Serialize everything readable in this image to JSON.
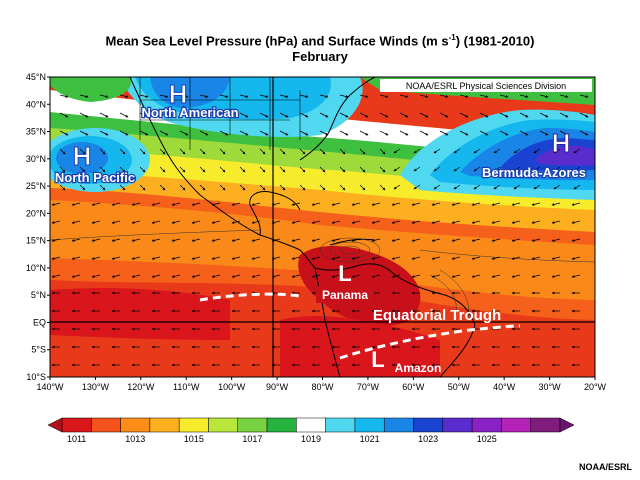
{
  "title": {
    "line1_prefix": "Mean Sea Level Pressure (hPa) and Surface Winds (m s",
    "line1_sup": "-1",
    "line1_suffix": ") (1981-2010)",
    "line2": "February"
  },
  "source_tag": "NOAA/ESRL Physical Sciences Division",
  "credit": "NOAA/ESRL",
  "axes": {
    "lat_labels": [
      "45°N",
      "40°N",
      "35°N",
      "30°N",
      "25°N",
      "20°N",
      "15°N",
      "10°N",
      "5°N",
      "EQ",
      "5°S",
      "10°S"
    ],
    "lon_labels": [
      "140°W",
      "130°W",
      "120°W",
      "110°W",
      "100°W",
      "90°W",
      "80°W",
      "70°W",
      "60°W",
      "50°W",
      "40°W",
      "30°W",
      "20°W"
    ]
  },
  "colorbar": {
    "labels": [
      "1011",
      "1013",
      "1015",
      "1017",
      "1019",
      "1021",
      "1023",
      "1025"
    ],
    "colors": [
      "#d8161b",
      "#f5531b",
      "#fb8d18",
      "#fcb020",
      "#f7ec2b",
      "#b9e63a",
      "#79d241",
      "#26b340",
      "#ffffff",
      "#4fd8ef",
      "#14b8ee",
      "#1985e6",
      "#1b43d2",
      "#5b2ccd",
      "#8a21c4",
      "#b522b9",
      "#7f1c7c"
    ]
  },
  "labels": {
    "highs": [
      {
        "symbol": "H",
        "name": "North American"
      },
      {
        "symbol": "H",
        "name": "North Pacific"
      },
      {
        "symbol": "H",
        "name": "Bermuda-Azores"
      }
    ],
    "lows": [
      {
        "symbol": "L",
        "name": "Panama"
      },
      {
        "symbol": "L",
        "name": "Amazon"
      }
    ],
    "trough": "Equatorial Trough"
  }
}
